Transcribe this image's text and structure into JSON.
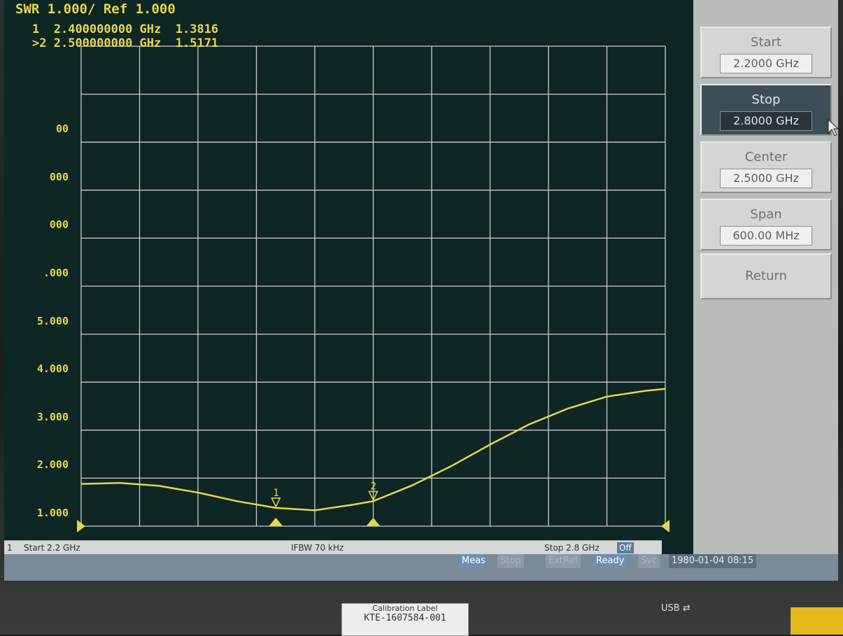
{
  "header": {
    "title": "SWR 1.000/ Ref 1.000"
  },
  "markers": [
    {
      "id": "1",
      "frequency": "2.400000000 GHz",
      "value": "1.3816",
      "active": false
    },
    {
      "id": ">2",
      "frequency": "2.500000000 GHz",
      "value": "1.5171",
      "active": true
    }
  ],
  "y_axis_ticks": [
    "",
    "",
    "00",
    "000",
    "000",
    ".000",
    "5.000",
    "4.000",
    "3.000",
    "2.000",
    "1.000"
  ],
  "softkeys": [
    {
      "label": "Start",
      "value": "2.2000 GHz",
      "active": false
    },
    {
      "label": "Stop",
      "value": "2.8000 GHz",
      "active": true
    },
    {
      "label": "Center",
      "value": "2.5000 GHz",
      "active": false
    },
    {
      "label": "Span",
      "value": "600.00 MHz",
      "active": false
    },
    {
      "label": "Return",
      "value": "",
      "active": false
    }
  ],
  "status": {
    "channel": "1",
    "start": "Start 2.2 GHz",
    "ifbw": "IFBW 70 kHz",
    "stop": "Stop 2.8 GHz",
    "off": "Off"
  },
  "bottom_bar": {
    "meas": "Meas",
    "stop": "Stop",
    "extref": "ExtRef",
    "ready": "Ready",
    "svc": "Svc",
    "datetime": "1980-01-04 08:15"
  },
  "labels": {
    "usb": "USB",
    "cal_line1": "Calibration Label",
    "cal_line2": "KTE-1607584-001"
  },
  "colors": {
    "trace": "#e8d64a",
    "grid": "#c8cfcd",
    "screen_bg": "#0e2624",
    "active_key": "#3e4e56"
  },
  "chart_data": {
    "type": "line",
    "title": "SWR 1.000/ Ref 1.000",
    "xlabel": "",
    "ylabel": "SWR",
    "xlim": [
      2.2,
      2.8
    ],
    "ylim": [
      1.0,
      11.0
    ],
    "grid": true,
    "series": [
      {
        "x": [
          2.2,
          2.24,
          2.28,
          2.32,
          2.36,
          2.4,
          2.44,
          2.48,
          2.5,
          2.54,
          2.58,
          2.62,
          2.66,
          2.7,
          2.74,
          2.78,
          2.8
        ],
        "y": [
          1.88,
          1.9,
          1.84,
          1.7,
          1.52,
          1.38,
          1.33,
          1.45,
          1.52,
          1.85,
          2.25,
          2.7,
          3.12,
          3.45,
          3.7,
          3.82,
          3.86
        ]
      }
    ],
    "marker_points": [
      {
        "label": "1",
        "x": 2.4,
        "y": 1.3816
      },
      {
        "label": "2",
        "x": 2.5,
        "y": 1.5171
      }
    ]
  }
}
